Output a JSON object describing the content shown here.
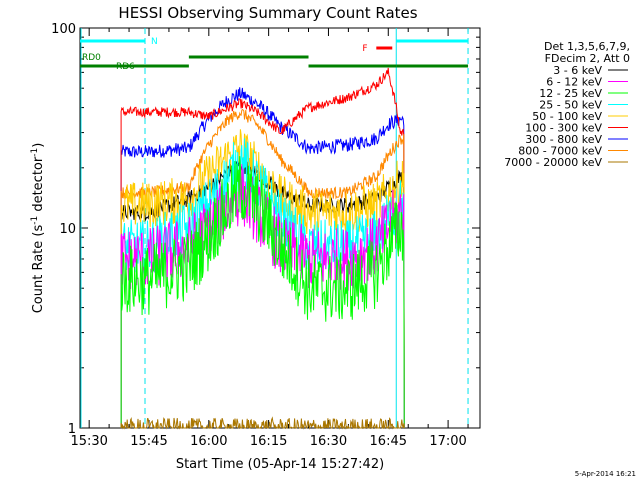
{
  "chart_data": {
    "type": "line",
    "title": "HESSI Observing Summary Count Rates",
    "xlabel": "Start Time (05-Apr-14 15:27:42)",
    "ylabel": "Count Rate (s⁻¹ detector⁻¹)",
    "ylabel_main": "Count Rate (s",
    "ylabel_sup1": "-1",
    "ylabel_mid": " detector",
    "ylabel_sup2": "-1",
    "ylabel_end": ")",
    "y_scale": "log",
    "ylim": [
      1,
      100
    ],
    "xlim": [
      "15:27:42",
      "17:08:00"
    ],
    "x_tick_labels": [
      "15:30",
      "15:45",
      "16:00",
      "16:15",
      "16:30",
      "16:45",
      "17:00"
    ],
    "y_tick_labels": [
      "1",
      "10",
      "100"
    ],
    "footer_date": "5-Apr-2014 16:21",
    "legend": {
      "placement": "right",
      "header": [
        "Det 1,3,5,6,7,9,",
        "FDecim 2, Att 0"
      ],
      "entries": [
        {
          "label": "3 - 6 keV",
          "color": "#000000"
        },
        {
          "label": "6 - 12 keV",
          "color": "#ff00ff"
        },
        {
          "label": "12 - 25 keV",
          "color": "#00ff00"
        },
        {
          "label": "25 - 50 keV",
          "color": "#00ffff"
        },
        {
          "label": "50 - 100 keV",
          "color": "#ffcc00"
        },
        {
          "label": "100 - 300 keV",
          "color": "#ff0000"
        },
        {
          "label": "300 - 800 keV",
          "color": "#0000ff"
        },
        {
          "label": "800 - 7000 keV",
          "color": "#ff8800"
        },
        {
          "label": "7000 - 20000 keV",
          "color": "#aa7700"
        }
      ]
    },
    "flag_labels": {
      "night": "N",
      "flare": "F",
      "rd0": "RD0",
      "rd6": "RD6"
    },
    "flags": {
      "night": [
        [
          "15:27:42",
          "15:44:00"
        ],
        [
          "16:47:00",
          "17:05:00"
        ]
      ],
      "flare": [
        [
          "16:42:00",
          "16:46:00"
        ]
      ],
      "rd0": [
        [
          "15:55:00",
          "16:25:00"
        ]
      ],
      "rd6": [
        [
          "15:27:42",
          "15:55:00"
        ],
        [
          "16:25:00",
          "16:47:00"
        ],
        [
          "16:47:00",
          "17:05:00"
        ]
      ],
      "night_boundaries": [
        "15:27:42",
        "15:44:00",
        "16:47:00",
        "17:05:00"
      ]
    },
    "data_window": [
      "15:38:00",
      "16:49:00"
    ],
    "series": [
      {
        "name": "3 - 6 keV",
        "color": "#000000",
        "x": [
          "15:39",
          "15:45",
          "15:55",
          "16:00",
          "16:05",
          "16:08",
          "16:12",
          "16:18",
          "16:25",
          "16:35",
          "16:42",
          "16:45",
          "16:48"
        ],
        "y": [
          12,
          12,
          14,
          16,
          19,
          21,
          19,
          15,
          13,
          13,
          14,
          16,
          18
        ]
      },
      {
        "name": "6 - 12 keV",
        "color": "#ff00ff",
        "x": [
          "15:39",
          "15:45",
          "15:55",
          "16:00",
          "16:05",
          "16:08",
          "16:12",
          "16:18",
          "16:25",
          "16:35",
          "16:42",
          "16:45",
          "16:48"
        ],
        "y": [
          7,
          7,
          8,
          10,
          13,
          15,
          12,
          8,
          7,
          7,
          8,
          10,
          12
        ]
      },
      {
        "name": "12 - 25 keV",
        "color": "#00ff00",
        "x": [
          "15:39",
          "15:45",
          "15:55",
          "16:00",
          "16:05",
          "16:08",
          "16:12",
          "16:18",
          "16:25",
          "16:35",
          "16:42",
          "16:45",
          "16:48"
        ],
        "y": [
          5.5,
          5.5,
          6.5,
          9,
          13,
          16,
          13,
          8,
          5,
          5,
          6,
          8,
          10
        ]
      },
      {
        "name": "25 - 50 keV",
        "color": "#00ffff",
        "x": [
          "15:39",
          "15:45",
          "15:55",
          "16:00",
          "16:05",
          "16:08",
          "16:12",
          "16:18",
          "16:25",
          "16:35",
          "16:42",
          "16:45",
          "16:48"
        ],
        "y": [
          8,
          8,
          10,
          13,
          18,
          22,
          17,
          11,
          8,
          8,
          9,
          11,
          13
        ]
      },
      {
        "name": "50 - 100 keV",
        "color": "#ffcc00",
        "x": [
          "15:39",
          "15:45",
          "15:55",
          "16:00",
          "16:05",
          "16:08",
          "16:12",
          "16:18",
          "16:25",
          "16:35",
          "16:42",
          "16:45",
          "16:48"
        ],
        "y": [
          13,
          13,
          14,
          18,
          23,
          25,
          20,
          14,
          12,
          12,
          13,
          15,
          17
        ]
      },
      {
        "name": "100 - 300 keV",
        "color": "#ff0000",
        "x": [
          "15:39",
          "15:45",
          "15:55",
          "16:00",
          "16:05",
          "16:08",
          "16:12",
          "16:18",
          "16:25",
          "16:35",
          "16:42",
          "16:45",
          "16:48"
        ],
        "y": [
          38,
          38,
          38,
          36,
          40,
          42,
          38,
          30,
          40,
          45,
          52,
          60,
          30
        ]
      },
      {
        "name": "300 - 800 keV",
        "color": "#0000ff",
        "x": [
          "15:39",
          "15:45",
          "15:55",
          "16:00",
          "16:05",
          "16:08",
          "16:12",
          "16:18",
          "16:25",
          "16:35",
          "16:42",
          "16:45",
          "16:48"
        ],
        "y": [
          24,
          24,
          25,
          35,
          44,
          47,
          42,
          32,
          25,
          26,
          28,
          33,
          35
        ]
      },
      {
        "name": "800 - 7000 keV",
        "color": "#ff8800",
        "x": [
          "15:39",
          "15:45",
          "15:55",
          "16:00",
          "16:05",
          "16:08",
          "16:12",
          "16:18",
          "16:25",
          "16:35",
          "16:42",
          "16:45",
          "16:48"
        ],
        "y": [
          15,
          15,
          16,
          26,
          35,
          38,
          33,
          22,
          15,
          15,
          18,
          23,
          28
        ]
      },
      {
        "name": "7000 - 20000 keV",
        "color": "#aa7700",
        "x": [
          "15:39",
          "16:48"
        ],
        "y": [
          1,
          1
        ]
      }
    ]
  }
}
